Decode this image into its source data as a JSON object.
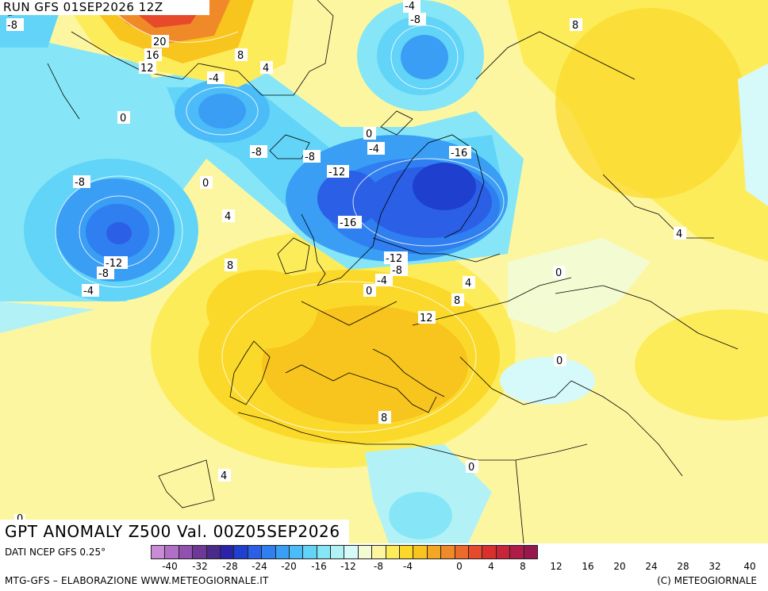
{
  "run_title": "RUN GFS 01SEP2026 12Z",
  "map_title": "GPT ANOMALY Z500 Val. 00Z05SEP2026",
  "footer": {
    "data_source": "DATI NCEP GFS 0.25°",
    "credits_left": "MTG-GFS – ELABORAZIONE WWW.METEOGIORNALE.IT",
    "credits_right": "(C) METEOGIORNALE"
  },
  "scale": {
    "colors": [
      "#c98bd6",
      "#b070c8",
      "#9250b0",
      "#6e3898",
      "#4a2a8a",
      "#2a22a8",
      "#1f3fce",
      "#2a5fe6",
      "#2f7ff0",
      "#3a9ef5",
      "#4bbcf7",
      "#62d4f7",
      "#86e6f7",
      "#b2f2f7",
      "#d6f9f9",
      "#f3fbd2",
      "#fdf6a0",
      "#fdec5a",
      "#fbd92a",
      "#f8c41e",
      "#f4a722",
      "#f08a28",
      "#ec6a2a",
      "#e64a2a",
      "#d9302c",
      "#c8243a",
      "#b01c48",
      "#98184e"
    ],
    "ticks": [
      "-40",
      "-32",
      "-28",
      "-24",
      "-20",
      "-16",
      "-12",
      "-8",
      "-4",
      "0",
      "4",
      "8",
      "12",
      "16",
      "20",
      "24",
      "28",
      "32",
      "40"
    ]
  },
  "contour_labels": [
    {
      "text": "-8"
    },
    {
      "text": "20"
    },
    {
      "text": "16"
    },
    {
      "text": "12"
    },
    {
      "text": "8"
    },
    {
      "text": "4"
    },
    {
      "text": "-4"
    },
    {
      "text": "-8"
    },
    {
      "text": "8"
    },
    {
      "text": "-4"
    },
    {
      "text": "0"
    },
    {
      "text": "0"
    },
    {
      "text": "-4"
    },
    {
      "text": "-8"
    },
    {
      "text": "-8"
    },
    {
      "text": "-16"
    },
    {
      "text": "-12"
    },
    {
      "text": "-8"
    },
    {
      "text": "0"
    },
    {
      "text": "4"
    },
    {
      "text": "-16"
    },
    {
      "text": "-12"
    },
    {
      "text": "-8"
    },
    {
      "text": "-4"
    },
    {
      "text": "-12"
    },
    {
      "text": "-8"
    },
    {
      "text": "-4"
    },
    {
      "text": "8"
    },
    {
      "text": "0"
    },
    {
      "text": "4"
    },
    {
      "text": "8"
    },
    {
      "text": "12"
    },
    {
      "text": "0"
    },
    {
      "text": "0"
    },
    {
      "text": "4"
    },
    {
      "text": "8"
    },
    {
      "text": "4"
    },
    {
      "text": "0"
    },
    {
      "text": "0"
    }
  ]
}
